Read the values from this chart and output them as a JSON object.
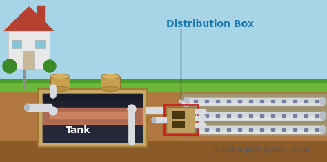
{
  "title": "Distribution Box",
  "subtitle": "Soil Absorption System (S.A.S)",
  "tank_label": "Tank",
  "sky_color": "#a8d4e8",
  "grass_color": "#6db83a",
  "grass_dark": "#4a9e28",
  "soil_color": "#b07840",
  "soil_dark": "#3a2010",
  "tank_outer_color": "#c8a96a",
  "tank_border_color": "#a07830",
  "tank_dark": "#1e2030",
  "tank_mid": "#2a3045",
  "water_pink": "#c87858",
  "water_bright": "#e09068",
  "pipe_color": "#d8dce0",
  "pipe_shadow": "#9098a0",
  "dbox_color": "#c0a060",
  "dbox_shadow": "#907030",
  "dbox_outline": "#cc2020",
  "title_color": "#1878b0",
  "gravel_color": "#a09878",
  "gravel_border": "#887855",
  "house_wall": "#e8e8e8",
  "house_wall_shadow": "#c8c8c8",
  "house_roof": "#b84030",
  "house_roof_edge": "#cccccc",
  "house_door": "#c8b898",
  "house_win": "#88c4d8",
  "chimney_color": "#b84030",
  "bush_color": "#3a8a28",
  "pipe_tube_light": "#d4d8dc",
  "pipe_tube_dark": "#9098a0",
  "annotation_line": "#444444",
  "sas_text_color": "#555555"
}
